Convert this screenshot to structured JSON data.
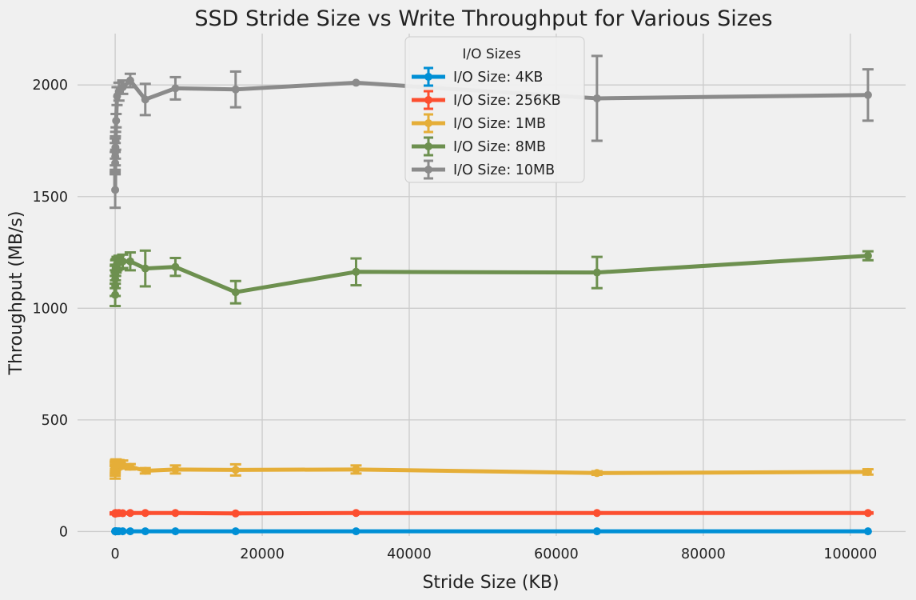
{
  "colors": {
    "background": "#f0f0f0",
    "grid": "#cbcbcb",
    "legend_bg": "#f0f0f0",
    "legend_border": "#cccccc"
  },
  "chart_data": {
    "type": "line",
    "title": "SSD Stride Size vs Write Throughput for Various Sizes",
    "xlabel": "Stride Size (KB)",
    "ylabel": "Throughput (MB/s)",
    "xlim": [
      -5120,
      107520
    ],
    "ylim": [
      -20,
      2230
    ],
    "xticks": [
      0,
      20000,
      40000,
      60000,
      80000,
      100000
    ],
    "xtick_labels": [
      "0",
      "20000",
      "40000",
      "60000",
      "80000",
      "100000"
    ],
    "yticks": [
      0,
      500,
      1000,
      1500,
      2000
    ],
    "ytick_labels": [
      "0",
      "500",
      "1000",
      "1500",
      "2000"
    ],
    "grid": true,
    "legend": {
      "title": "I/O Sizes",
      "position": "top-center"
    },
    "x": [
      0,
      4,
      8,
      16,
      32,
      64,
      128,
      256,
      512,
      1024,
      2048,
      4096,
      8192,
      16384,
      32768,
      65536,
      102400
    ],
    "series": [
      {
        "name": "I/O Size: 4KB",
        "color": "#008fd5",
        "values": [
          1,
          1,
          1,
          1,
          1,
          1,
          1,
          1,
          1,
          1,
          1,
          1,
          1,
          1,
          1,
          1,
          1
        ],
        "errors": [
          0,
          0,
          0,
          0,
          0,
          0,
          0,
          0,
          0,
          0,
          0,
          0,
          0,
          0,
          0,
          0,
          0
        ]
      },
      {
        "name": "I/O Size: 256KB",
        "color": "#fc4f30",
        "values": [
          80,
          81,
          82,
          81,
          82,
          83,
          82,
          82,
          83,
          82,
          83,
          83,
          83,
          81,
          83,
          83,
          83
        ],
        "errors": [
          3,
          3,
          3,
          3,
          3,
          3,
          3,
          3,
          3,
          3,
          3,
          3,
          3,
          3,
          3,
          3,
          3
        ]
      },
      {
        "name": "I/O Size: 1MB",
        "color": "#e5ae38",
        "values": [
          265,
          275,
          285,
          292,
          300,
          298,
          305,
          300,
          302,
          300,
          290,
          272,
          278,
          276,
          278,
          262,
          267
        ],
        "errors": [
          28,
          25,
          25,
          22,
          20,
          22,
          18,
          20,
          18,
          18,
          12,
          12,
          18,
          25,
          18,
          8,
          12
        ]
      },
      {
        "name": "I/O Size: 8MB",
        "color": "#6d904f",
        "values": [
          1060,
          1100,
          1130,
          1150,
          1160,
          1180,
          1190,
          1200,
          1205,
          1210,
          1210,
          1178,
          1185,
          1072,
          1163,
          1160,
          1235
        ],
        "errors": [
          50,
          45,
          40,
          40,
          35,
          35,
          30,
          30,
          30,
          30,
          40,
          80,
          40,
          50,
          60,
          70,
          20
        ]
      },
      {
        "name": "I/O Size: 10MB",
        "color": "#8b8b8b",
        "values": [
          1530,
          1650,
          1680,
          1700,
          1720,
          1750,
          1840,
          1950,
          1970,
          1990,
          2020,
          1935,
          1985,
          1980,
          2010,
          1940,
          1955
        ],
        "errors": [
          80,
          50,
          60,
          60,
          50,
          40,
          30,
          40,
          40,
          30,
          30,
          70,
          50,
          80,
          0,
          190,
          115
        ]
      }
    ]
  }
}
